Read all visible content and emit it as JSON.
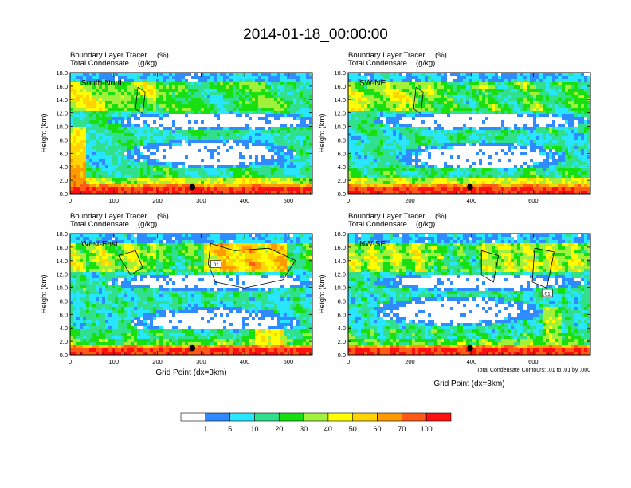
{
  "title": "2014-01-18_00:00:00",
  "panel_header": {
    "line1": "Boundary Layer Tracer",
    "line1_unit": "(%)",
    "line2": "Total Condensate",
    "line2_unit": "(g/kg)"
  },
  "footnote": "Total Condensate Contours: .01 to .01 by .000",
  "colorbar": {
    "colors": [
      "#ffffff",
      "#2f8cff",
      "#28e6ff",
      "#30e08c",
      "#18e010",
      "#a0f03c",
      "#ffff00",
      "#ffd400",
      "#ff9a00",
      "#ff5a18",
      "#ff1010"
    ],
    "labels": [
      "1",
      "5",
      "10",
      "20",
      "30",
      "40",
      "50",
      "60",
      "70",
      "100"
    ]
  },
  "chart_data": [
    {
      "type": "heatmap",
      "name": "South-North",
      "ylabel": "Height (km)",
      "xlabel": "",
      "xlim": [
        0,
        555
      ],
      "ylim": [
        0,
        18
      ],
      "xticks": [
        "0",
        "100",
        "200",
        "300",
        "400",
        "500"
      ],
      "yticks": [
        "0.0",
        "2.0",
        "4.0",
        "6.0",
        "8.0",
        "10.0",
        "12.0",
        "14.0",
        "16.0",
        "18.0"
      ],
      "marker": {
        "x": 280,
        "y": 1.0
      },
      "contour_label": ""
    },
    {
      "type": "heatmap",
      "name": "SW-NE",
      "ylabel": "Height (km)",
      "xlabel": "",
      "xlim": [
        0,
        785
      ],
      "ylim": [
        0,
        18
      ],
      "xticks": [
        "0",
        "200",
        "400",
        "600"
      ],
      "yticks": [
        "0.0",
        "2.0",
        "4.0",
        "6.0",
        "8.0",
        "10.0",
        "12.0",
        "14.0",
        "16.0",
        "18.0"
      ],
      "marker": {
        "x": 395,
        "y": 1.0
      },
      "contour_label": ""
    },
    {
      "type": "heatmap",
      "name": "West-East",
      "ylabel": "Height (km)",
      "xlabel": "Grid Point (dx=3km)",
      "xlim": [
        0,
        555
      ],
      "ylim": [
        0,
        18
      ],
      "xticks": [
        "0",
        "100",
        "200",
        "300",
        "400",
        "500"
      ],
      "yticks": [
        "0.0",
        "2.0",
        "4.0",
        "6.0",
        "8.0",
        "10.0",
        "12.0",
        "14.0",
        "16.0",
        "18.0"
      ],
      "marker": {
        "x": 280,
        "y": 1.0
      },
      "contour_label": ".01"
    },
    {
      "type": "heatmap",
      "name": "NW-SE",
      "ylabel": "Height (km)",
      "xlabel": "Grid Point (dx=3km)",
      "xlim": [
        0,
        785
      ],
      "ylim": [
        0,
        18
      ],
      "xticks": [
        "0",
        "200",
        "400",
        "600"
      ],
      "yticks": [
        "0.0",
        "2.0",
        "4.0",
        "6.0",
        "8.0",
        "10.0",
        "12.0",
        "14.0",
        "16.0",
        "18.0"
      ],
      "marker": {
        "x": 395,
        "y": 1.0
      },
      "contour_label": ".01"
    }
  ]
}
